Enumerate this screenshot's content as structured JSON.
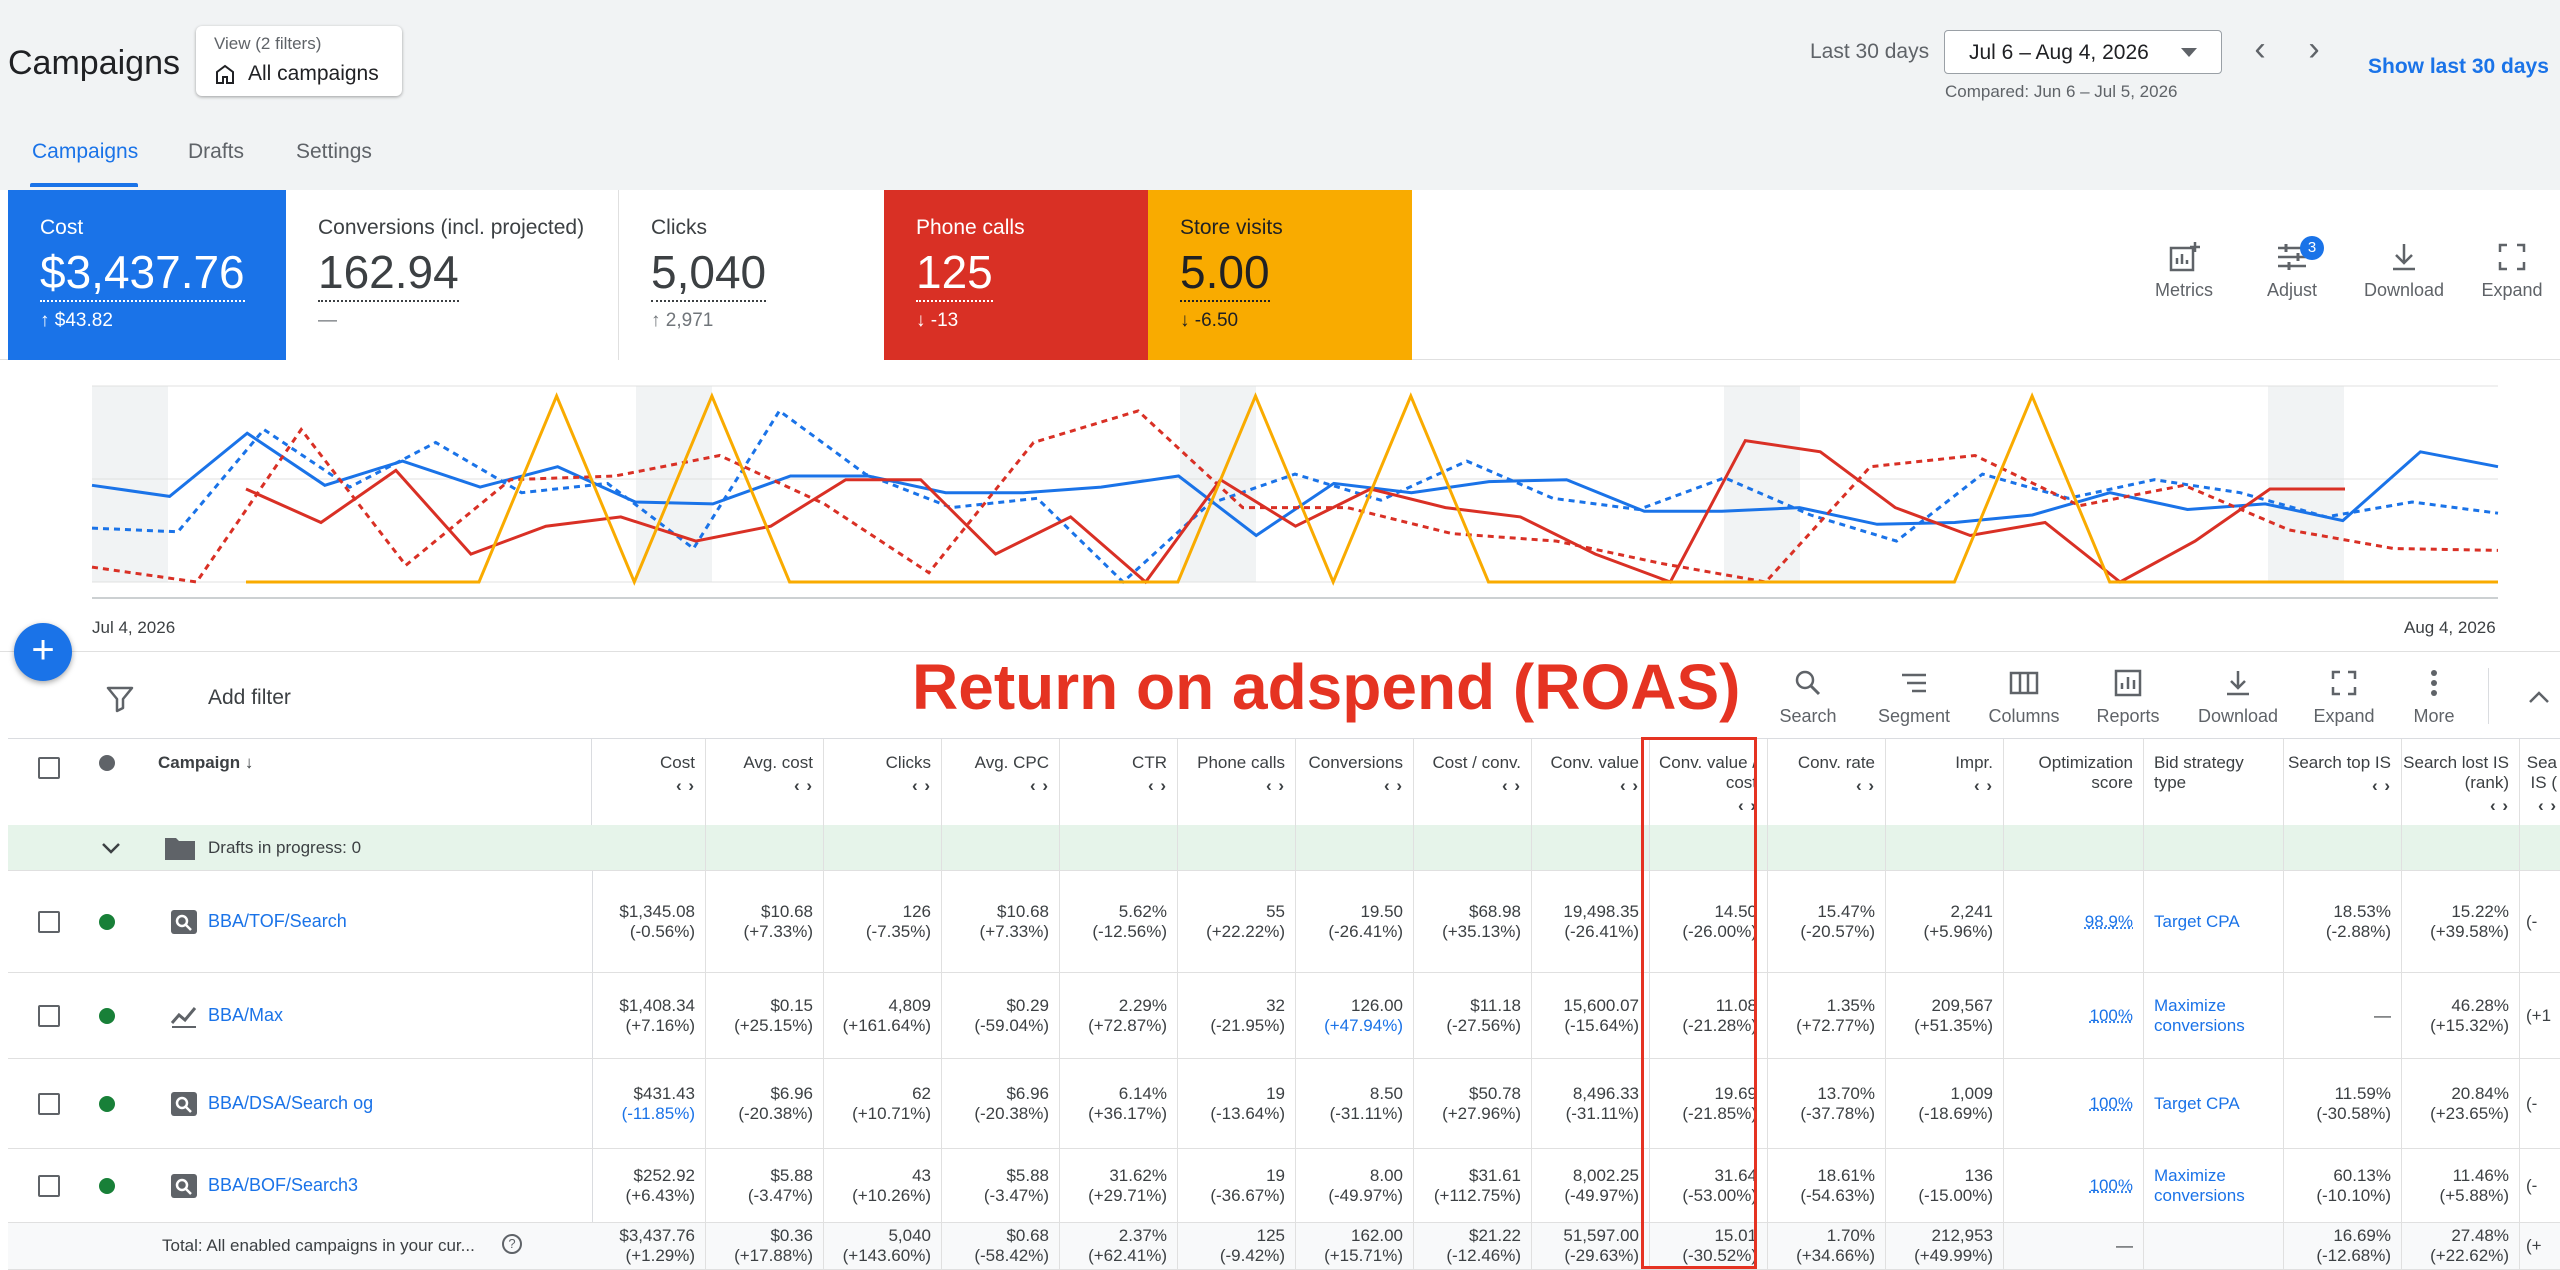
{
  "header": {
    "title": "Campaigns",
    "view_filters": "View (2 filters)",
    "view_name": "All campaigns",
    "date_label": "Last 30 days",
    "date_range": "Jul 6 – Aug 4, 2026",
    "compared": "Compared: Jun 6 – Jul 5, 2026",
    "show_last": "Show last 30 days"
  },
  "tabs": [
    {
      "label": "Campaigns",
      "active": true
    },
    {
      "label": "Drafts"
    },
    {
      "label": "Settings"
    }
  ],
  "cards": {
    "cost": {
      "label": "Cost",
      "value": "$3,437.76",
      "delta": "↑ $43.82",
      "color": "#1a73e8"
    },
    "conversions": {
      "label": "Conversions (incl. projected)",
      "value": "162.94",
      "delta": "—"
    },
    "clicks": {
      "label": "Clicks",
      "value": "5,040",
      "delta": "↑ 2,971"
    },
    "phone": {
      "label": "Phone calls",
      "value": "125",
      "delta": "↓ -13",
      "color": "#d93025"
    },
    "store": {
      "label": "Store visits",
      "value": "5.00",
      "delta": "↓ -6.50",
      "color": "#f9ab00"
    }
  },
  "chart_tools": {
    "metrics": "Metrics",
    "adjust": "Adjust",
    "adjust_badge": "3",
    "download": "Download",
    "expand": "Expand"
  },
  "chart_data": {
    "type": "line",
    "x_start": "Jul 4, 2026",
    "x_end": "Aug 4, 2026",
    "series": [
      {
        "color": "#1a73e8",
        "dashed": false,
        "values": [
          0.52,
          0.46,
          0.8,
          0.52,
          0.65,
          0.51,
          0.62,
          0.43,
          0.42,
          0.57,
          0.57,
          0.48,
          0.48,
          0.51,
          0.57,
          0.25,
          0.53,
          0.48,
          0.54,
          0.55,
          0.38,
          0.38,
          0.4,
          0.31,
          0.32,
          0.36,
          0.48,
          0.39,
          0.42,
          0.33,
          0.7,
          0.62
        ]
      },
      {
        "color": "#1a73e8",
        "dashed": true,
        "values": [
          0.29,
          0.27,
          0.82,
          0.51,
          0.75,
          0.48,
          0.53,
          0.18,
          0.92,
          0.58,
          0.4,
          0.45,
          0.0,
          0.42,
          0.58,
          0.44,
          0.65,
          0.45,
          0.39,
          0.56,
          0.36,
          0.22,
          0.58,
          0.45,
          0.55,
          0.48,
          0.35,
          0.43,
          0.37
        ]
      },
      {
        "color": "#d93025",
        "dashed": false,
        "values": [
          0.5,
          0.32,
          0.6,
          0.15,
          0.3,
          0.35,
          0.22,
          0.3,
          0.55,
          0.55,
          0.15,
          0.35,
          0.0,
          0.55,
          0.3,
          0.5,
          0.4,
          0.35,
          0.15,
          0.0,
          0.76,
          0.7,
          0.4,
          0.25,
          0.32,
          0.0,
          0.22,
          0.5,
          0.5
        ]
      },
      {
        "color": "#d93025",
        "dashed": true,
        "values": [
          0.08,
          0.0,
          0.82,
          0.09,
          0.55,
          0.57,
          0.68,
          0.42,
          0.05,
          0.75,
          0.92,
          0.4,
          0.4,
          0.26,
          0.22,
          0.1,
          0.0,
          0.62,
          0.68,
          0.41,
          0.52,
          0.28,
          0.18,
          0.17
        ]
      },
      {
        "color": "#f9ab00",
        "dashed": false,
        "values": [
          0,
          0,
          0,
          0,
          1,
          0,
          1,
          0,
          0,
          0,
          0,
          0,
          0,
          1,
          0,
          1,
          0,
          0,
          0,
          0,
          0,
          0,
          0,
          1,
          0,
          0,
          0,
          0,
          0,
          0
        ]
      }
    ]
  },
  "filter_bar": {
    "add_filter": "Add filter",
    "annotation": "Return on adspend (ROAS)"
  },
  "table_tools": [
    "Search",
    "Segment",
    "Columns",
    "Reports",
    "Download",
    "Expand",
    "More"
  ],
  "table": {
    "campaign_header": "Campaign ↓",
    "headers": [
      "Cost",
      "Avg. cost",
      "Clicks",
      "Avg. CPC",
      "CTR",
      "Phone calls",
      "Conversions",
      "Cost / conv.",
      "Conv. value",
      "Conv. value / cost",
      "Conv. rate",
      "Impr.",
      "Optimization score",
      "Bid strategy type",
      "Search top IS",
      "Search lost IS (rank)",
      "Sea IS ("
    ],
    "drafts_row": "Drafts in progress: 0",
    "rows": [
      {
        "name": "BBA/TOF/Search",
        "type": "search",
        "cells": [
          [
            "$1,345.08",
            "(-0.56%)"
          ],
          [
            "$10.68",
            "(+7.33%)"
          ],
          [
            "126",
            "(-7.35%)"
          ],
          [
            "$10.68",
            "(+7.33%)"
          ],
          [
            "5.62%",
            "(-12.56%)"
          ],
          [
            "55",
            "(+22.22%)"
          ],
          [
            "19.50",
            "(-26.41%)"
          ],
          [
            "$68.98",
            "(+35.13%)"
          ],
          [
            "19,498.35",
            "(-26.41%)"
          ],
          [
            "14.50",
            "(-26.00%)"
          ],
          [
            "15.47%",
            "(-20.57%)"
          ],
          [
            "2,241",
            "(+5.96%)"
          ]
        ],
        "score": "98.9%",
        "bid": "Target CPA",
        "top_is": [
          "18.53%",
          "(-2.88%)"
        ],
        "lost_is": [
          "15.22%",
          "(+39.58%)"
        ],
        "extra": "(-"
      },
      {
        "name": "BBA/Max",
        "type": "pmax",
        "cells": [
          [
            "$1,408.34",
            "(+7.16%)"
          ],
          [
            "$0.15",
            "(+25.15%)"
          ],
          [
            "4,809",
            "(+161.64%)"
          ],
          [
            "$0.29",
            "(-59.04%)"
          ],
          [
            "2.29%",
            "(+72.87%)"
          ],
          [
            "32",
            "(-21.95%)"
          ],
          [
            "126.00",
            "(+47.94%)"
          ],
          [
            "$11.18",
            "(-27.56%)"
          ],
          [
            "15,600.07",
            "(-15.64%)"
          ],
          [
            "11.08",
            "(-21.28%)"
          ],
          [
            "1.35%",
            "(+72.77%)"
          ],
          [
            "209,567",
            "(+51.35%)"
          ]
        ],
        "score": "100%",
        "bid": "Maximize conversions",
        "top_is": [
          "—",
          ""
        ],
        "lost_is": [
          "46.28%",
          "(+15.32%)"
        ],
        "extra": "(+1"
      },
      {
        "name": "BBA/DSA/Search og",
        "type": "search",
        "cells": [
          [
            "$431.43",
            "(-11.85%)"
          ],
          [
            "$6.96",
            "(-20.38%)"
          ],
          [
            "62",
            "(+10.71%)"
          ],
          [
            "$6.96",
            "(-20.38%)"
          ],
          [
            "6.14%",
            "(+36.17%)"
          ],
          [
            "19",
            "(-13.64%)"
          ],
          [
            "8.50",
            "(-31.11%)"
          ],
          [
            "$50.78",
            "(+27.96%)"
          ],
          [
            "8,496.33",
            "(-31.11%)"
          ],
          [
            "19.69",
            "(-21.85%)"
          ],
          [
            "13.70%",
            "(-37.78%)"
          ],
          [
            "1,009",
            "(-18.69%)"
          ]
        ],
        "score": "100%",
        "bid": "Target CPA",
        "top_is": [
          "11.59%",
          "(-30.58%)"
        ],
        "lost_is": [
          "20.84%",
          "(+23.65%)"
        ],
        "extra": "(-"
      },
      {
        "name": "BBA/BOF/Search3",
        "type": "search",
        "cells": [
          [
            "$252.92",
            "(+6.43%)"
          ],
          [
            "$5.88",
            "(-3.47%)"
          ],
          [
            "43",
            "(+10.26%)"
          ],
          [
            "$5.88",
            "(-3.47%)"
          ],
          [
            "31.62%",
            "(+29.71%)"
          ],
          [
            "19",
            "(-36.67%)"
          ],
          [
            "8.00",
            "(-49.97%)"
          ],
          [
            "$31.61",
            "(+112.75%)"
          ],
          [
            "8,002.25",
            "(-49.97%)"
          ],
          [
            "31.64",
            "(-53.00%)"
          ],
          [
            "18.61%",
            "(-54.63%)"
          ],
          [
            "136",
            "(-15.00%)"
          ]
        ],
        "score": "100%",
        "bid": "Maximize conversions",
        "top_is": [
          "60.13%",
          "(-10.10%)"
        ],
        "lost_is": [
          "11.46%",
          "(+5.88%)"
        ],
        "extra": "(-"
      }
    ],
    "total": {
      "label": "Total: All enabled campaigns in your cur...",
      "cells": [
        [
          "$3,437.76",
          "(+1.29%)"
        ],
        [
          "$0.36",
          "(+17.88%)"
        ],
        [
          "5,040",
          "(+143.60%)"
        ],
        [
          "$0.68",
          "(-58.42%)"
        ],
        [
          "2.37%",
          "(+62.41%)"
        ],
        [
          "125",
          "(-9.42%)"
        ],
        [
          "162.00",
          "(+15.71%)"
        ],
        [
          "$21.22",
          "(-12.46%)"
        ],
        [
          "51,597.00",
          "(-29.63%)"
        ],
        [
          "15.01",
          "(-30.52%)"
        ],
        [
          "1.70%",
          "(+34.66%)"
        ],
        [
          "212,953",
          "(+49.99%)"
        ]
      ],
      "score": "—",
      "top_is": [
        "16.69%",
        "(-12.68%)"
      ],
      "lost_is": [
        "27.48%",
        "(+22.62%)"
      ],
      "extra": "(+"
    }
  }
}
